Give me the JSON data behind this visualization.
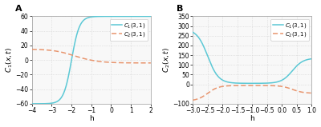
{
  "panel_A": {
    "xlabel": "h",
    "ylabel": "$C_1(x, t)$",
    "xlim": [
      -4,
      2
    ],
    "ylim": [
      -60,
      60
    ],
    "yticks": [
      -60,
      -40,
      -20,
      0,
      20,
      40,
      60
    ],
    "xticks": [
      -4,
      -3,
      -2,
      -1,
      0,
      1,
      2
    ],
    "legend": [
      "$C_1(3, 1)$",
      "$C_2(3, 1)$"
    ],
    "label": "A"
  },
  "panel_B": {
    "xlabel": "h",
    "ylabel": "$C_2(x, t)$",
    "xlim": [
      -3,
      1
    ],
    "ylim": [
      -100,
      350
    ],
    "yticks": [
      -100,
      0,
      50,
      100,
      150,
      200,
      250,
      300,
      350
    ],
    "xticks": [
      -3,
      -2.5,
      -2,
      -1.5,
      -1,
      -0.5,
      0,
      0.5,
      1
    ],
    "legend": [
      "$C_1(3, 1)$",
      "$C_2(3, 1)$"
    ],
    "label": "B"
  },
  "color_solid": "#5bc8d5",
  "color_dashed": "#e8956e",
  "bg_color": "#f8f8f8",
  "grid_color": "#d0d0d0",
  "linewidth": 1.1,
  "fontsize_label": 6.5,
  "fontsize_tick": 5.5,
  "fontsize_legend": 5.0,
  "legend_handlelength": 1.8
}
